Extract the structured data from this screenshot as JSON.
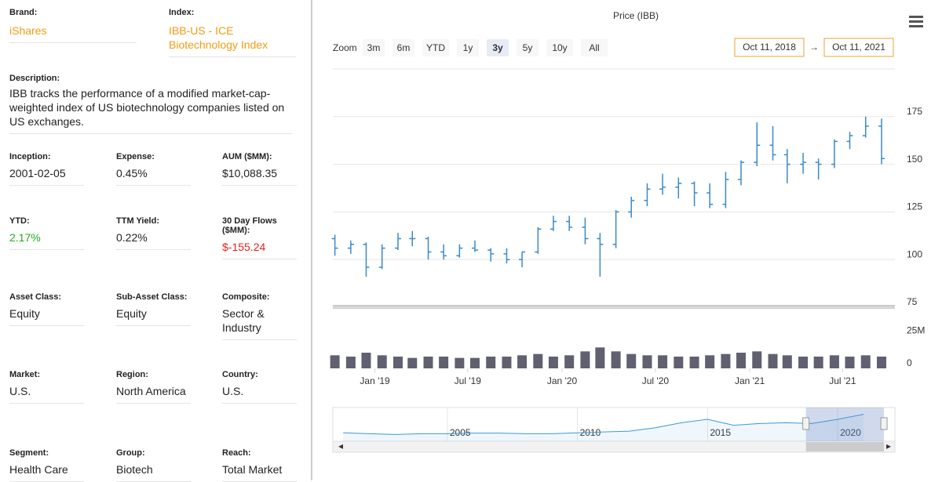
{
  "panel": {
    "top": [
      {
        "label": "Brand:",
        "value": "iShares",
        "color": "#f39c12"
      },
      {
        "label": "Index:",
        "value": "IBB-US - ICE Biotechnology Index",
        "color": "#f39c12"
      }
    ],
    "description": {
      "label": "Description:",
      "value": "IBB tracks the performance of a modified market-cap-weighted index of US biotechnology companies listed on US exchanges."
    },
    "rows": [
      [
        {
          "label": "Inception:",
          "value": "2001-02-05"
        },
        {
          "label": "Expense:",
          "value": "0.45%"
        },
        {
          "label": "AUM ($MM):",
          "value": "$10,088.35"
        }
      ],
      [
        {
          "label": "YTD:",
          "value": "2.17%",
          "color": "#22aa22"
        },
        {
          "label": "TTM Yield:",
          "value": "0.22%"
        },
        {
          "label": "30 Day Flows ($MM):",
          "value": "$-155.24",
          "color": "#e8201c"
        }
      ],
      [
        {
          "label": "Asset Class:",
          "value": "Equity"
        },
        {
          "label": "Sub-Asset Class:",
          "value": "Equity"
        },
        {
          "label": "Composite:",
          "value": "Sector & Industry"
        }
      ],
      [
        {
          "label": "Market:",
          "value": "U.S."
        },
        {
          "label": "Region:",
          "value": "North America"
        },
        {
          "label": "Country:",
          "value": "U.S."
        }
      ],
      [
        {
          "label": "Segment:",
          "value": "Health Care"
        },
        {
          "label": "Group:",
          "value": "Biotech"
        },
        {
          "label": "Reach:",
          "value": "Total Market"
        }
      ]
    ]
  },
  "chart_data": {
    "type": "ohlc",
    "title": "Price (IBB)",
    "color": "#3a8ac8",
    "zoom": {
      "label": "Zoom",
      "buttons": [
        "3m",
        "6m",
        "YTD",
        "1y",
        "3y",
        "5y",
        "10y",
        "All"
      ],
      "selected": "3y"
    },
    "range_separator": "→",
    "x": [
      "2018-10",
      "2018-11",
      "2018-12",
      "2019-01",
      "2019-02",
      "2019-03",
      "2019-04",
      "2019-05",
      "2019-06",
      "2019-07",
      "2019-08",
      "2019-09",
      "2019-10",
      "2019-11",
      "2019-12",
      "2020-01",
      "2020-02",
      "2020-03",
      "2020-04",
      "2020-05",
      "2020-06",
      "2020-07",
      "2020-08",
      "2020-09",
      "2020-10",
      "2020-11",
      "2020-12",
      "2021-01",
      "2021-02",
      "2021-03",
      "2021-04",
      "2021-05",
      "2021-06",
      "2021-07",
      "2021-08",
      "2021-09"
    ],
    "open": [
      111,
      106,
      108,
      96,
      106,
      111,
      111,
      104,
      102,
      106,
      105,
      103,
      100,
      104,
      116,
      120,
      117,
      111,
      108,
      125,
      131,
      137,
      138,
      140,
      135,
      129,
      142,
      151,
      160,
      155,
      150,
      151,
      150,
      162,
      165,
      170
    ],
    "high": [
      113,
      110,
      109,
      108,
      114,
      115,
      112,
      108,
      108,
      110,
      106,
      106,
      104,
      117,
      123,
      123,
      122,
      114,
      126,
      133,
      140,
      145,
      143,
      141,
      140,
      146,
      152,
      172,
      170,
      158,
      156,
      153,
      163,
      167,
      175,
      174
    ],
    "low": [
      102,
      103,
      91,
      95,
      105,
      107,
      100,
      100,
      101,
      104,
      99,
      98,
      96,
      103,
      115,
      115,
      108,
      91,
      106,
      122,
      128,
      134,
      132,
      128,
      127,
      127,
      139,
      149,
      152,
      140,
      145,
      142,
      148,
      158,
      164,
      150
    ],
    "close": [
      106,
      108,
      96,
      106,
      111,
      111,
      104,
      102,
      106,
      105,
      103,
      100,
      104,
      116,
      120,
      117,
      111,
      108,
      125,
      131,
      137,
      138,
      140,
      135,
      129,
      142,
      151,
      160,
      155,
      150,
      151,
      150,
      162,
      165,
      170,
      153
    ],
    "xlim": [
      {
        "value": "2018-10-11",
        "label": "Oct 11, 2018"
      },
      {
        "value": "2021-10-11",
        "label": "Oct 11, 2021"
      }
    ],
    "xticks": [
      {
        "value": "2019-01-01",
        "label": "Jan '19"
      },
      {
        "value": "2019-07-01",
        "label": "Jul '19"
      },
      {
        "value": "2020-01-01",
        "label": "Jan '20"
      },
      {
        "value": "2020-07-01",
        "label": "Jul '20"
      },
      {
        "value": "2021-01-01",
        "label": "Jan '21"
      },
      {
        "value": "2021-07-01",
        "label": "Jul '21"
      }
    ],
    "ylim": [
      75,
      200
    ],
    "yticks": [
      75,
      100,
      125,
      150,
      175
    ],
    "grid": true,
    "volume": {
      "color": "#606070",
      "values": [
        10,
        9,
        12,
        10,
        9,
        8,
        9,
        9,
        8,
        8,
        9,
        9,
        10,
        11,
        9,
        10,
        13,
        16,
        13,
        11,
        10,
        10,
        9,
        9,
        10,
        11,
        12,
        13,
        11,
        10,
        9,
        9,
        10,
        9,
        10,
        9
      ],
      "ylim": [
        0,
        30
      ],
      "yticks": [
        0,
        {
          "value": 25,
          "label": "25M"
        }
      ]
    },
    "navigator": {
      "color": "#3a9ad9",
      "x": [
        2001,
        2002,
        2003,
        2004,
        2005,
        2006,
        2007,
        2008,
        2009,
        2010,
        2011,
        2012,
        2013,
        2014,
        2015,
        2016,
        2017,
        2018,
        2019,
        2020,
        2021
      ],
      "values": [
        50,
        45,
        40,
        45,
        45,
        48,
        48,
        45,
        45,
        50,
        55,
        60,
        80,
        110,
        130,
        95,
        105,
        110,
        105,
        130,
        160
      ],
      "xlim": [
        2000.6,
        2022.2
      ],
      "ylim": [
        0,
        200
      ],
      "xticks": [
        2005,
        2010,
        2015,
        2020
      ]
    }
  }
}
